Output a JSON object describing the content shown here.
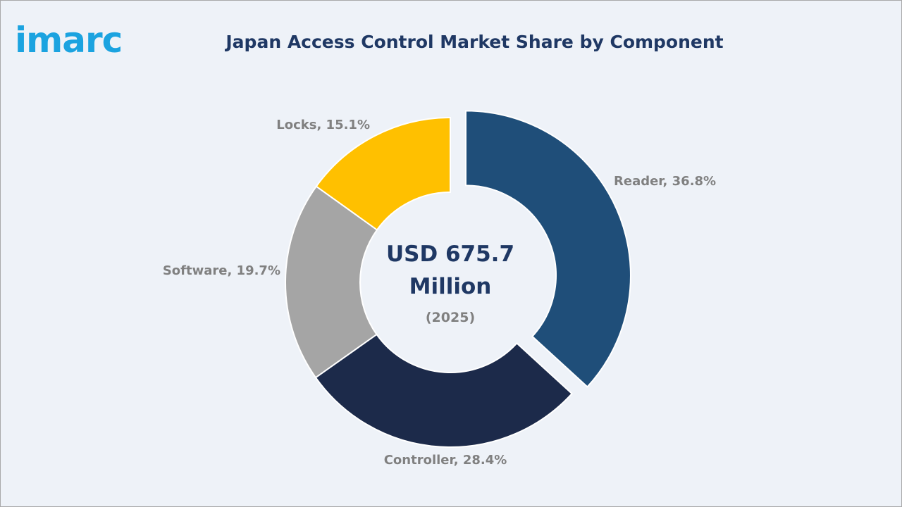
{
  "brand": {
    "logo_text": "imarc",
    "logo_color": "#1ba3e0"
  },
  "chart_data": {
    "type": "pie",
    "title": "Japan Access Control Market Share by Component",
    "center_label": {
      "line1": "USD 675.7",
      "line2": "Million",
      "sub": "(2025)"
    },
    "slices": [
      {
        "label": "Reader",
        "value": 36.8,
        "display": "Reader, 36.8%",
        "color": "#1f4e79",
        "exploded": true
      },
      {
        "label": "Controller",
        "value": 28.4,
        "display": "Controller, 28.4%",
        "color": "#1c2a4a",
        "exploded": false
      },
      {
        "label": "Software",
        "value": 19.7,
        "display": "Software, 19.7%",
        "color": "#a5a5a5",
        "exploded": false
      },
      {
        "label": "Locks",
        "value": 15.1,
        "display": "Locks, 15.1%",
        "color": "#ffc000",
        "exploded": false
      }
    ]
  }
}
